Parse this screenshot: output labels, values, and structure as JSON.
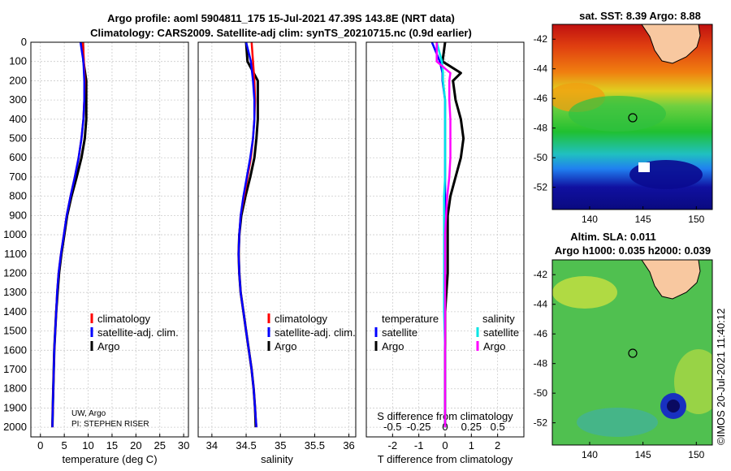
{
  "figure": {
    "title_line1": "Argo profile: aoml 5904811_175 15-Jul-2021 47.39S 143.8E (NRT data)",
    "title_line2": "Climatology: CARS2009. Satellite-adj clim: synTS_20210715.nc (0.9d earlier)",
    "credit": "©IMOS 20-Jul-2021 11:40:12",
    "source_line1": "UW, Argo",
    "source_line2": "PI: STEPHEN RISER"
  },
  "colors": {
    "climatology": "#ff0000",
    "satellite_adj": "#0000ff",
    "argo": "#000000",
    "sat_temperature": "#0000ff",
    "sat_salinity": "#00e5e5",
    "argo_salinity": "#ff00ff",
    "grid": "#cccccc"
  },
  "legends": {
    "temperature_panel": [
      "climatology",
      "satellite-adj. clim.",
      "Argo"
    ],
    "salinity_panel": [
      "climatology",
      "satellite-adj. clim.",
      "Argo"
    ],
    "diff_temperature_header": "temperature",
    "diff_temperature": [
      "satellite",
      "Argo"
    ],
    "diff_salinity_header": "salinity",
    "diff_salinity": [
      "satellite",
      "Argo"
    ]
  },
  "maps": {
    "sst": {
      "title": "sat. SST: 8.39 Argo: 8.88",
      "lat_ticks": [
        -42,
        -44,
        -46,
        -48,
        -50,
        -52
      ],
      "lon_ticks": [
        140,
        145,
        150
      ],
      "lat_range": [
        -53.5,
        -41
      ],
      "lon_range": [
        136.5,
        151.5
      ],
      "argo_lat": -47.39,
      "argo_lon": 143.8
    },
    "sla": {
      "title_line1": "Altim. SLA: 0.011",
      "title_line2": "Argo h1000: 0.035 h2000: 0.039",
      "lat_ticks": [
        -42,
        -44,
        -46,
        -48,
        -50,
        -52
      ],
      "lon_ticks": [
        140,
        145,
        150
      ],
      "lat_range": [
        -53.5,
        -41
      ],
      "lon_range": [
        136.5,
        151.5
      ],
      "argo_lat": -47.39,
      "argo_lon": 143.8
    }
  },
  "chart_data": [
    {
      "type": "line",
      "title": "",
      "xlabel": "temperature (deg C)",
      "ylabel": "",
      "xlim": [
        -2,
        31
      ],
      "ylim": [
        2050,
        0
      ],
      "xticks": [
        0,
        5,
        10,
        15,
        20,
        25,
        30
      ],
      "yticks": [
        0,
        100,
        200,
        300,
        400,
        500,
        600,
        700,
        800,
        900,
        1000,
        1100,
        1200,
        1300,
        1400,
        1500,
        1600,
        1700,
        1800,
        1900,
        2000
      ],
      "depth": [
        0,
        100,
        200,
        300,
        400,
        500,
        600,
        700,
        800,
        900,
        1000,
        1100,
        1200,
        1300,
        1400,
        1500,
        1600,
        1700,
        1800,
        1900,
        2000
      ],
      "series": [
        {
          "name": "climatology",
          "values": [
            8.9,
            9.1,
            9.3,
            9.2,
            9.0,
            8.6,
            8.0,
            7.2,
            6.3,
            5.5,
            4.9,
            4.3,
            3.8,
            3.5,
            3.3,
            3.1,
            2.9,
            2.8,
            2.7,
            2.6,
            2.5
          ]
        },
        {
          "name": "satellite-adj. clim.",
          "values": [
            8.4,
            9.0,
            9.2,
            9.2,
            9.0,
            8.6,
            8.0,
            7.2,
            6.3,
            5.5,
            4.9,
            4.3,
            3.8,
            3.5,
            3.3,
            3.1,
            2.9,
            2.8,
            2.7,
            2.6,
            2.5
          ]
        },
        {
          "name": "Argo",
          "values": [
            8.9,
            9.0,
            9.6,
            9.6,
            9.6,
            9.3,
            8.6,
            7.6,
            6.5,
            5.6,
            5.0,
            4.4,
            3.9,
            3.6,
            3.3,
            3.1,
            2.9,
            2.8,
            2.7,
            2.6,
            2.5
          ]
        }
      ]
    },
    {
      "type": "line",
      "title": "",
      "xlabel": "salinity",
      "ylabel": "",
      "xlim": [
        33.8,
        36.1
      ],
      "ylim": [
        2050,
        0
      ],
      "xticks": [
        34,
        34.5,
        35,
        35.5,
        36
      ],
      "xticklabels": [
        "34",
        "34.5",
        "35",
        "35.5",
        "36"
      ],
      "depth": [
        0,
        100,
        200,
        300,
        400,
        500,
        600,
        700,
        800,
        900,
        1000,
        1100,
        1200,
        1300,
        1400,
        1500,
        1600,
        1700,
        1800,
        1900,
        2000
      ],
      "series": [
        {
          "name": "climatology",
          "values": [
            34.58,
            34.6,
            34.62,
            34.63,
            34.62,
            34.6,
            34.57,
            34.52,
            34.47,
            34.42,
            34.4,
            34.39,
            34.4,
            34.42,
            34.46,
            34.5,
            34.54,
            34.58,
            34.61,
            34.63,
            34.65
          ]
        },
        {
          "name": "satellite-adj. clim.",
          "values": [
            34.5,
            34.57,
            34.6,
            34.62,
            34.62,
            34.6,
            34.56,
            34.51,
            34.46,
            34.42,
            34.4,
            34.39,
            34.4,
            34.42,
            34.46,
            34.5,
            34.54,
            34.58,
            34.61,
            34.63,
            34.65
          ]
        },
        {
          "name": "Argo",
          "values": [
            34.5,
            34.52,
            34.67,
            34.67,
            34.67,
            34.65,
            34.62,
            34.56,
            34.49,
            34.43,
            34.4,
            34.39,
            34.4,
            34.42,
            34.46,
            34.5,
            34.54,
            34.58,
            34.61,
            34.63,
            34.64
          ]
        }
      ]
    },
    {
      "type": "line",
      "title": "",
      "xlabel": "T difference from climatology",
      "top_xlabel": "S difference from climatology",
      "ylabel": "",
      "xlim": [
        -3,
        3
      ],
      "ylim": [
        2050,
        0
      ],
      "xticks": [
        -2,
        -1,
        0,
        1,
        2
      ],
      "top_xticks": [
        -0.5,
        -0.25,
        0,
        0.25,
        0.5
      ],
      "top_xticklabels": [
        "-0.5",
        "-0.25",
        "0",
        "0.25",
        "0.5"
      ],
      "depth": [
        0,
        100,
        160,
        200,
        300,
        400,
        500,
        600,
        700,
        800,
        900,
        1000,
        1200,
        1400,
        1600,
        1800,
        2000
      ],
      "series": [
        {
          "name": "temperature satellite",
          "axis": "T",
          "values": [
            -0.5,
            -0.2,
            -0.1,
            -0.1,
            0.0,
            0.0,
            0.0,
            0.0,
            0.0,
            0.0,
            0.0,
            0.0,
            0.0,
            0.0,
            0.0,
            0.0,
            0.0
          ]
        },
        {
          "name": "temperature Argo",
          "axis": "T",
          "values": [
            0.0,
            -0.1,
            0.6,
            0.3,
            0.4,
            0.6,
            0.7,
            0.6,
            0.4,
            0.2,
            0.1,
            0.1,
            0.1,
            0.0,
            0.0,
            0.0,
            0.0
          ]
        },
        {
          "name": "salinity satellite",
          "axis": "S",
          "values": [
            -0.08,
            -0.03,
            -0.02,
            -0.02,
            0.0,
            0.0,
            0.0,
            0.0,
            0.0,
            -0.01,
            -0.01,
            -0.01,
            -0.01,
            -0.01,
            0.0,
            0.0,
            0.0
          ]
        },
        {
          "name": "salinity Argo",
          "axis": "S",
          "values": [
            -0.08,
            -0.08,
            0.05,
            0.04,
            0.04,
            0.05,
            0.05,
            0.05,
            0.04,
            0.02,
            0.01,
            0.0,
            0.0,
            0.0,
            0.0,
            0.0,
            0.0
          ]
        }
      ]
    }
  ]
}
